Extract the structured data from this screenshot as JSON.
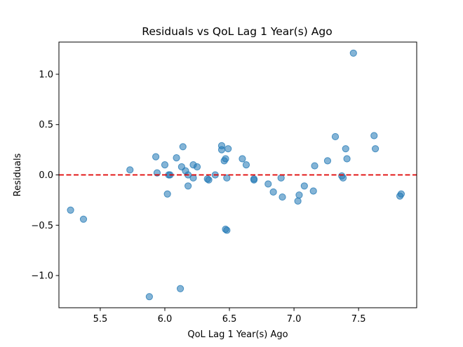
{
  "chart_data": {
    "type": "scatter",
    "title": "Residuals vs QoL Lag 1 Year(s) Ago",
    "xlabel": "QoL Lag 1 Year(s) Ago",
    "ylabel": "Residuals",
    "xlim": [
      5.18,
      7.95
    ],
    "ylim": [
      -1.32,
      1.32
    ],
    "xticks": [
      5.5,
      6.0,
      6.5,
      7.0,
      7.5
    ],
    "xtick_labels": [
      "5.5",
      "6.0",
      "6.5",
      "7.0",
      "7.5"
    ],
    "yticks": [
      -1.0,
      -0.5,
      0.0,
      0.5,
      1.0
    ],
    "ytick_labels": [
      "−1.0",
      "−0.5",
      "0.0",
      "0.5",
      "1.0"
    ],
    "reference_line": {
      "y": 0.0,
      "style": "dashed",
      "color": "#e00000"
    },
    "point_color": "#1f77b4",
    "grid": false,
    "x": [
      5.27,
      5.37,
      5.73,
      5.88,
      5.93,
      5.94,
      6.0,
      6.02,
      6.03,
      6.04,
      6.09,
      6.12,
      6.13,
      6.14,
      6.16,
      6.18,
      6.18,
      6.22,
      6.22,
      6.25,
      6.33,
      6.34,
      6.39,
      6.44,
      6.44,
      6.46,
      6.47,
      6.47,
      6.48,
      6.48,
      6.49,
      6.6,
      6.63,
      6.69,
      6.69,
      6.8,
      6.84,
      6.9,
      6.91,
      7.03,
      7.04,
      7.08,
      7.15,
      7.16,
      7.26,
      7.32,
      7.37,
      7.38,
      7.4,
      7.41,
      7.46,
      7.62,
      7.63,
      7.82,
      7.83
    ],
    "y": [
      -0.35,
      -0.44,
      0.05,
      -1.21,
      0.18,
      0.02,
      0.1,
      -0.19,
      0.0,
      0.0,
      0.17,
      -1.13,
      0.08,
      0.28,
      0.04,
      -0.11,
      0.0,
      0.1,
      -0.03,
      0.08,
      -0.04,
      -0.05,
      0.0,
      0.29,
      0.25,
      0.14,
      0.16,
      -0.54,
      -0.03,
      -0.55,
      0.26,
      0.16,
      0.1,
      -0.04,
      -0.05,
      -0.09,
      -0.17,
      -0.03,
      -0.22,
      -0.26,
      -0.2,
      -0.11,
      -0.16,
      0.09,
      0.14,
      0.38,
      -0.01,
      -0.03,
      0.26,
      0.16,
      1.21,
      0.39,
      0.26,
      -0.21,
      -0.19
    ]
  }
}
